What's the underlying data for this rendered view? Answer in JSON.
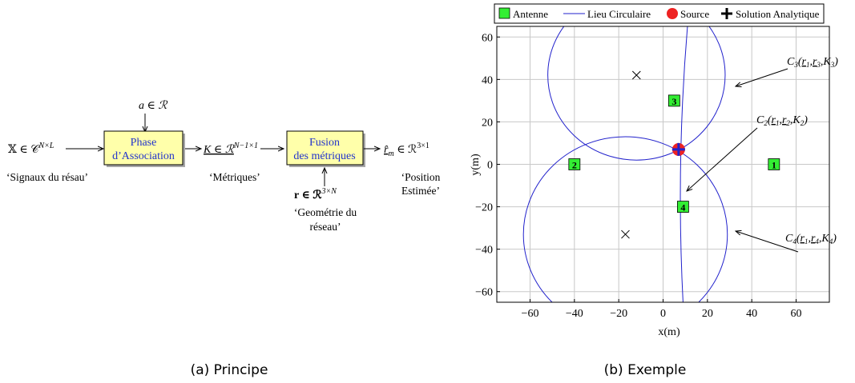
{
  "principle": {
    "caption": "(a) Principe",
    "input_symbol": "𝕏 ∈ 𝒞",
    "input_sup": "N×L",
    "input_label": "‘Signaux du résau’",
    "a_label": "a ∈ ℛ",
    "block1": [
      "Phase",
      "d’Association"
    ],
    "metric_symbol": "K ∈ ℛ",
    "metric_sup": "N−1×1",
    "metric_label": "‘Métriques’",
    "block2": [
      "Fusion",
      "des métriques"
    ],
    "output_symbol": "r̂",
    "output_sub": "m",
    "output_rest": " ∈ ℛ",
    "output_sup": "3×1",
    "output_label": [
      "‘Position",
      "Estimée’"
    ],
    "geom_symbol": "r ∈ ℛ",
    "geom_sup": "3×N",
    "geom_label": [
      "‘Geométrie du",
      "réseau’"
    ]
  },
  "example": {
    "caption": "(b) Exemple",
    "legend": [
      "Antenne",
      "Lieu Circulaire",
      "Source",
      "Solution Analytique"
    ],
    "colors": {
      "antenna": "#33ee33",
      "locus": "#2222cc",
      "source": "#ee2222",
      "solution": "#000000"
    },
    "callouts": [
      {
        "curve": "C",
        "sub": "3",
        "args": [
          "r",
          "1",
          "r",
          "3",
          "K",
          "3"
        ]
      },
      {
        "curve": "C",
        "sub": "2",
        "args": [
          "r",
          "1",
          "r",
          "2",
          "K",
          "2"
        ]
      },
      {
        "curve": "C",
        "sub": "4",
        "args": [
          "r",
          "1",
          "r",
          "4",
          "K",
          "4"
        ]
      }
    ]
  },
  "chart_data": {
    "type": "scatter",
    "xlabel": "x(m)",
    "ylabel": "y(m)",
    "xlim": [
      -75,
      75
    ],
    "ylim": [
      -65,
      65
    ],
    "xticks": [
      -60,
      -40,
      -20,
      0,
      20,
      40,
      60
    ],
    "yticks": [
      -60,
      -40,
      -20,
      0,
      20,
      40,
      60
    ],
    "grid": true,
    "antennas": [
      {
        "label": "1",
        "x": 50,
        "y": 0
      },
      {
        "label": "2",
        "x": -40,
        "y": 0
      },
      {
        "label": "3",
        "x": 5,
        "y": 30
      },
      {
        "label": "4",
        "x": 9,
        "y": -20
      }
    ],
    "source": {
      "x": 7,
      "y": 7
    },
    "solution": {
      "x": 7,
      "y": 7
    },
    "centers": [
      {
        "x": -12,
        "y": 42
      },
      {
        "x": -17,
        "y": -33
      }
    ],
    "circles": [
      {
        "name": "C3",
        "cx": -12,
        "cy": 42,
        "r": 40
      },
      {
        "name": "C4",
        "cx": -17,
        "cy": -33,
        "r": 46
      }
    ],
    "line_C2": {
      "x_at_y65": 11,
      "x_at_y0": 7,
      "x_at_yminus65": 9
    }
  }
}
